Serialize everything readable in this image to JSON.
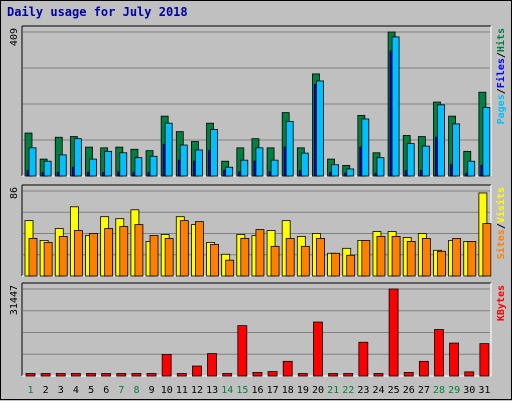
{
  "title": "Daily usage for July 2018",
  "colors": {
    "hits": "#008040",
    "files": "#0000ff",
    "pages": "#00c0ff",
    "visits": "#ffff00",
    "sites": "#ff8000",
    "kbytes": "#ff0000",
    "weekend_day_label": "#008040",
    "weekday_label": "#000000",
    "grid": "#808080"
  },
  "side_labels": {
    "panel1": [
      "Pages",
      "/",
      "Files",
      "/",
      "Hits"
    ],
    "panel2": [
      "Sites",
      "/",
      "Visits"
    ],
    "panel3": [
      "KBytes"
    ]
  },
  "chart_data": [
    {
      "type": "bar",
      "title": "Daily usage for July 2018",
      "y_max_label": "409",
      "ylim": [
        0,
        409
      ],
      "grid": true,
      "categories": [
        "1",
        "2",
        "3",
        "4",
        "5",
        "6",
        "7",
        "8",
        "9",
        "10",
        "11",
        "12",
        "13",
        "14",
        "15",
        "16",
        "17",
        "18",
        "19",
        "20",
        "21",
        "22",
        "23",
        "24",
        "25",
        "26",
        "27",
        "28",
        "29",
        "30",
        "31"
      ],
      "weekend_days": [
        "1",
        "7",
        "8",
        "14",
        "15",
        "21",
        "22",
        "28",
        "29"
      ],
      "series": [
        {
          "name": "Hits",
          "color": "#008040",
          "values": [
            122,
            48,
            110,
            112,
            82,
            80,
            82,
            76,
            72,
            170,
            126,
            98,
            150,
            42,
            80,
            106,
            80,
            180,
            80,
            290,
            48,
            30,
            172,
            66,
            409,
            115,
            112,
            210,
            170,
            70,
            238
          ]
        },
        {
          "name": "Files",
          "color": "#0000ff",
          "values": [
            15,
            10,
            10,
            25,
            10,
            10,
            12,
            10,
            10,
            90,
            45,
            42,
            72,
            16,
            12,
            42,
            12,
            82,
            15,
            260,
            10,
            8,
            82,
            8,
            355,
            15,
            15,
            110,
            32,
            8,
            30
          ]
        },
        {
          "name": "Pages",
          "color": "#00c0ff",
          "values": [
            80,
            42,
            60,
            106,
            48,
            70,
            66,
            52,
            56,
            150,
            88,
            74,
            132,
            25,
            45,
            80,
            45,
            155,
            65,
            270,
            32,
            20,
            162,
            52,
            395,
            92,
            85,
            202,
            148,
            42,
            195
          ]
        }
      ]
    },
    {
      "type": "bar",
      "y_max_label": "86",
      "ylim": [
        0,
        86
      ],
      "grid": true,
      "categories": [
        "1",
        "2",
        "3",
        "4",
        "5",
        "6",
        "7",
        "8",
        "9",
        "10",
        "11",
        "12",
        "13",
        "14",
        "15",
        "16",
        "17",
        "18",
        "19",
        "20",
        "21",
        "22",
        "23",
        "24",
        "25",
        "26",
        "27",
        "28",
        "29",
        "30",
        "31"
      ],
      "series": [
        {
          "name": "Visits",
          "color": "#ffff00",
          "values": [
            56,
            36,
            48,
            70,
            41,
            60,
            58,
            67,
            35,
            42,
            60,
            52,
            34,
            22,
            42,
            41,
            46,
            56,
            40,
            43,
            23,
            28,
            36,
            45,
            45,
            39,
            43,
            26,
            36,
            35,
            84
          ]
        },
        {
          "name": "Sites",
          "color": "#ff8000",
          "values": [
            38,
            34,
            40,
            46,
            43,
            48,
            50,
            52,
            41,
            38,
            56,
            55,
            32,
            16,
            38,
            47,
            30,
            38,
            30,
            38,
            23,
            21,
            36,
            40,
            40,
            35,
            38,
            25,
            38,
            35,
            53
          ]
        }
      ]
    },
    {
      "type": "bar",
      "y_max_label": "31447",
      "ylim": [
        0,
        31447
      ],
      "grid": true,
      "categories": [
        "1",
        "2",
        "3",
        "4",
        "5",
        "6",
        "7",
        "8",
        "9",
        "10",
        "11",
        "12",
        "13",
        "14",
        "15",
        "16",
        "17",
        "18",
        "19",
        "20",
        "21",
        "22",
        "23",
        "24",
        "25",
        "26",
        "27",
        "28",
        "29",
        "30",
        "31"
      ],
      "series": [
        {
          "name": "KBytes",
          "color": "#ff0000",
          "values": [
            900,
            900,
            900,
            900,
            900,
            900,
            900,
            900,
            900,
            7800,
            900,
            3600,
            8100,
            900,
            18200,
            1300,
            1600,
            5300,
            900,
            19500,
            900,
            900,
            12200,
            900,
            31447,
            1300,
            5300,
            16800,
            11900,
            1500,
            11700
          ]
        }
      ]
    }
  ]
}
